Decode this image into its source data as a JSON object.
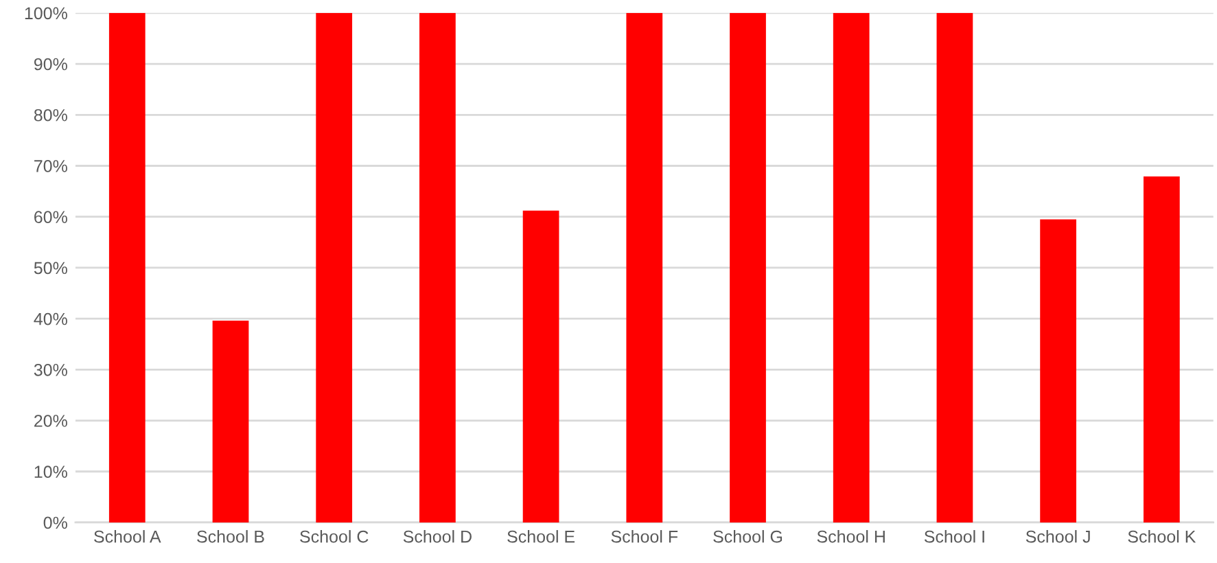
{
  "chart_data": {
    "type": "bar",
    "categories": [
      "School A",
      "School B",
      "School C",
      "School D",
      "School E",
      "School F",
      "School G",
      "School H",
      "School I",
      "School J",
      "School K"
    ],
    "values": [
      100,
      39.6,
      100,
      100,
      61.2,
      100,
      100,
      100,
      100,
      59.5,
      67.9
    ],
    "color": "#ff0000",
    "ylim": [
      0,
      100
    ],
    "yticks": [
      {
        "value": 0,
        "label": "0%"
      },
      {
        "value": 10,
        "label": "10%"
      },
      {
        "value": 20,
        "label": "20%"
      },
      {
        "value": 30,
        "label": "30%"
      },
      {
        "value": 40,
        "label": "40%"
      },
      {
        "value": 50,
        "label": "50%"
      },
      {
        "value": 60,
        "label": "60%"
      },
      {
        "value": 70,
        "label": "70%"
      },
      {
        "value": 80,
        "label": "80%"
      },
      {
        "value": 90,
        "label": "90%"
      },
      {
        "value": 100,
        "label": "100%"
      }
    ],
    "grid": "y",
    "legend": false
  }
}
